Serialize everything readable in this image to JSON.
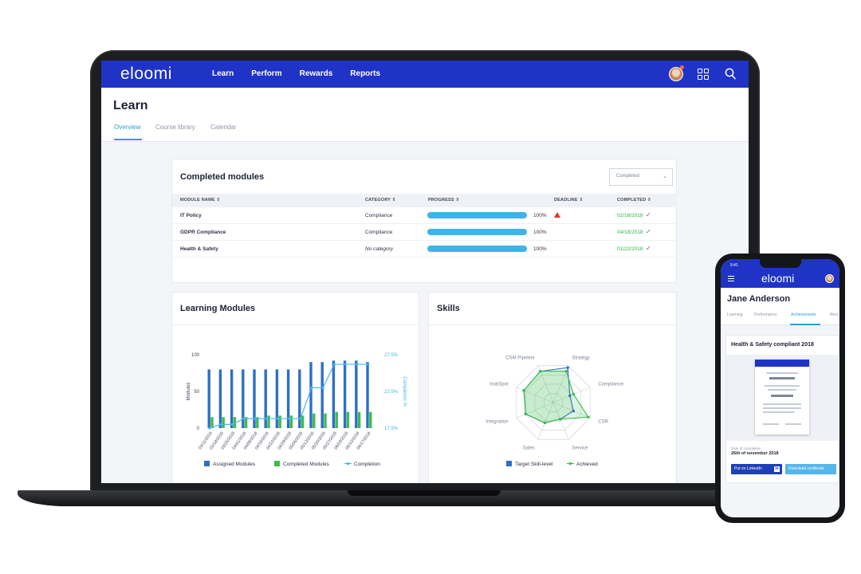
{
  "brand": {
    "logo": "eloomi",
    "accent": "#1f33c7",
    "link": "#2a9fd8",
    "green": "#2db24a",
    "red": "#d9372e"
  },
  "nav": {
    "items": [
      "Learn",
      "Perform",
      "Rewards",
      "Reports"
    ]
  },
  "page": {
    "title": "Learn",
    "tabs": [
      "Overview",
      "Course library",
      "Calendar"
    ],
    "active_tab": "Overview"
  },
  "completed_modules": {
    "title": "Completed modules",
    "filter_value": "Completed",
    "columns": [
      "MODULE NAME",
      "CATEGORY",
      "PROGRESS",
      "DEADLINE",
      "COMPLETED"
    ],
    "sort_glyph": "⇕",
    "rows": [
      {
        "module": "IT Policy",
        "category": "Compliance",
        "progress": 1.0,
        "progress_label": "100%",
        "deadline_warning": true,
        "completed": "02/16/2018"
      },
      {
        "module": "GDPR Compliance",
        "category": "Compliance",
        "progress": 1.0,
        "progress_label": "100%",
        "deadline_warning": false,
        "completed": "04/18/2018"
      },
      {
        "module": "Health & Safety",
        "category": "No category",
        "progress": 1.0,
        "progress_label": "100%",
        "deadline_warning": false,
        "completed": "01/22/2018"
      }
    ]
  },
  "learning_modules": {
    "title": "Learning Modules"
  },
  "skills": {
    "title": "Skills"
  },
  "chart_data": [
    {
      "type": "bar",
      "title": "Learning Modules",
      "categories": [
        "03/11/2018",
        "03/18/2018",
        "03/25/2018",
        "04/01/2018",
        "04/08/2018",
        "04/15/2018",
        "04/22/2018",
        "04/29/2018",
        "05/06/2018",
        "05/13/2018",
        "05/20/2018",
        "05/27/2018",
        "06/03/2018",
        "06/10/2018",
        "06/17/2018"
      ],
      "series": [
        {
          "name": "Assigned Modules",
          "color": "#2e6fc4",
          "values": [
            80,
            80,
            80,
            80,
            80,
            80,
            80,
            80,
            80,
            90,
            90,
            92,
            92,
            92,
            90
          ]
        },
        {
          "name": "Completed Modules",
          "color": "#3dbb4f",
          "values": [
            15,
            15,
            15,
            15,
            15,
            17,
            17,
            17,
            17,
            20,
            20,
            22,
            22,
            22,
            22
          ]
        },
        {
          "name": "Completion",
          "color": "#48b6e6",
          "axis": "right",
          "values": [
            17.5,
            18.0,
            18.0,
            18.8,
            18.8,
            18.8,
            18.8,
            18.8,
            18.8,
            23.0,
            23.0,
            26.2,
            26.2,
            26.2,
            26.2
          ]
        }
      ],
      "ylim": [
        0,
        100
      ],
      "yticks": [
        0,
        50,
        100
      ],
      "ylabel": "Modules",
      "y2lim": [
        17.5,
        27.5
      ],
      "y2ticks": [
        "17.5%",
        "22.5%",
        "27.5%"
      ],
      "y2label": "Completion %",
      "legend": "bottom"
    },
    {
      "type": "radar",
      "title": "Skills",
      "axes": [
        "Strategy",
        "Compliance",
        "CSR",
        "Service",
        "Sales",
        "Integration",
        "HubSpot",
        "CSM Pipeline"
      ],
      "series": [
        {
          "name": "Target Skill-level",
          "color": "#2e6fc4",
          "values": [
            0.95,
            0.45,
            0.55,
            0.45,
            0.55,
            0.75,
            0.8,
            0.85
          ]
        },
        {
          "name": "Achieved",
          "color": "#3dbb4f",
          "values": [
            0.85,
            0.55,
            0.95,
            0.45,
            0.55,
            0.75,
            0.8,
            0.85
          ]
        }
      ],
      "legend": "bottom"
    }
  ],
  "phone": {
    "time": "9:41",
    "logo": "eloomi",
    "user_name": "Jane Anderson",
    "tabs": [
      "Learning",
      "Performance",
      "Achievements",
      "Revi"
    ],
    "active_tab": "Achievements",
    "achievement_title": "Health & Safety compliant 2018",
    "date_label": "Date of completion",
    "date_value": "26th of november 2018",
    "linkedin_button": "Put on LinkedIn",
    "linkedin_icon": "in",
    "download_button": "Download certificate"
  }
}
